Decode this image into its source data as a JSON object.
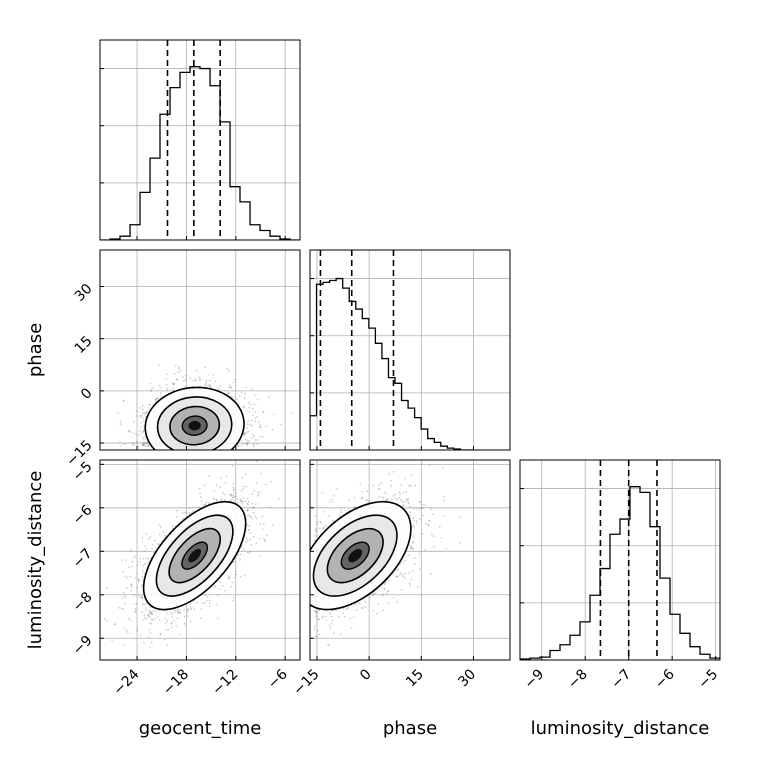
{
  "chart_data": {
    "type": "corner",
    "parameters": [
      "geocent_time",
      "phase",
      "luminosity_distance"
    ],
    "axis_labels": {
      "x": [
        "geocent_time",
        "phase",
        "luminosity_distance"
      ],
      "y": [
        "",
        "phase",
        "luminosity_distance"
      ]
    },
    "ranges": {
      "geocent_time": [
        -28.5,
        -4.2
      ],
      "phase": [
        -17.0,
        40.5
      ],
      "luminosity_distance": [
        -9.5,
        -4.9
      ]
    },
    "ticks": {
      "geocent_time": [
        -24,
        -18,
        -12,
        -6
      ],
      "phase": [
        -15,
        0,
        15,
        30
      ],
      "luminosity_distance": [
        -9,
        -8,
        -7,
        -6,
        -5
      ]
    },
    "grid": true,
    "colors": {
      "line": "#000000",
      "grid": "#b0b0b0",
      "scatter": "#555555"
    },
    "histograms": {
      "geocent_time": {
        "edges": [
          -28.5,
          -27.28,
          -26.07,
          -24.85,
          -23.64,
          -22.42,
          -21.21,
          -19.99,
          -18.78,
          -17.56,
          -16.35,
          -15.13,
          -13.92,
          -12.7,
          -11.49,
          -10.27,
          -9.06,
          -7.84,
          -6.63,
          -5.41,
          -4.2
        ],
        "counts": [
          0.0,
          0.005,
          0.02,
          0.08,
          0.25,
          0.43,
          0.66,
          0.8,
          0.88,
          0.91,
          0.9,
          0.81,
          0.62,
          0.28,
          0.2,
          0.08,
          0.05,
          0.02,
          0.005,
          0.0
        ],
        "quantiles": [
          -20.3,
          -17.1,
          -13.9
        ]
      },
      "phase": {
        "edges": [
          -17.0,
          -15.12,
          -13.24,
          -11.36,
          -9.48,
          -7.6,
          -5.72,
          -3.84,
          -1.96,
          -0.08,
          1.8,
          3.68,
          5.56,
          7.44,
          9.32,
          11.2,
          13.08,
          14.96,
          16.84,
          18.72,
          20.6,
          22.48,
          24.36,
          26.24,
          28.12,
          30.0
        ],
        "counts": [
          0.18,
          0.87,
          0.88,
          0.89,
          0.9,
          0.85,
          0.78,
          0.74,
          0.69,
          0.64,
          0.56,
          0.48,
          0.38,
          0.35,
          0.26,
          0.22,
          0.17,
          0.11,
          0.06,
          0.04,
          0.02,
          0.01,
          0.005,
          0.0,
          0.0
        ],
        "quantiles": [
          -14.0,
          -5.0,
          7.0
        ]
      },
      "luminosity_distance": {
        "edges": [
          -9.5,
          -9.27,
          -9.04,
          -8.81,
          -8.58,
          -8.35,
          -8.12,
          -7.89,
          -7.66,
          -7.43,
          -7.2,
          -6.97,
          -6.74,
          -6.51,
          -6.28,
          -6.05,
          -5.82,
          -5.59,
          -5.36,
          -5.13,
          -4.9
        ],
        "counts": [
          0.005,
          0.01,
          0.015,
          0.05,
          0.08,
          0.13,
          0.2,
          0.34,
          0.48,
          0.66,
          0.74,
          0.91,
          0.88,
          0.7,
          0.43,
          0.24,
          0.14,
          0.07,
          0.03,
          0.01
        ],
        "quantiles": [
          -7.65,
          -7.0,
          -6.35
        ]
      }
    },
    "pairs": [
      {
        "x": "geocent_time",
        "y": "phase",
        "mean": [
          -17.0,
          -10.0
        ],
        "std": [
          3.0,
          5.5
        ],
        "rho": 0.05,
        "clip_y": -16.0
      },
      {
        "x": "geocent_time",
        "y": "luminosity_distance",
        "mean": [
          -17.0,
          -7.1
        ],
        "std": [
          3.1,
          0.62
        ],
        "rho": 0.6,
        "clip_y": null
      },
      {
        "x": "phase",
        "y": "luminosity_distance",
        "mean": [
          -4.0,
          -7.1
        ],
        "std": [
          8.0,
          0.62
        ],
        "rho": 0.5,
        "clip_x": -15.8
      }
    ],
    "contour_levels": [
      0.118,
      0.393,
      0.675,
      0.864
    ]
  }
}
